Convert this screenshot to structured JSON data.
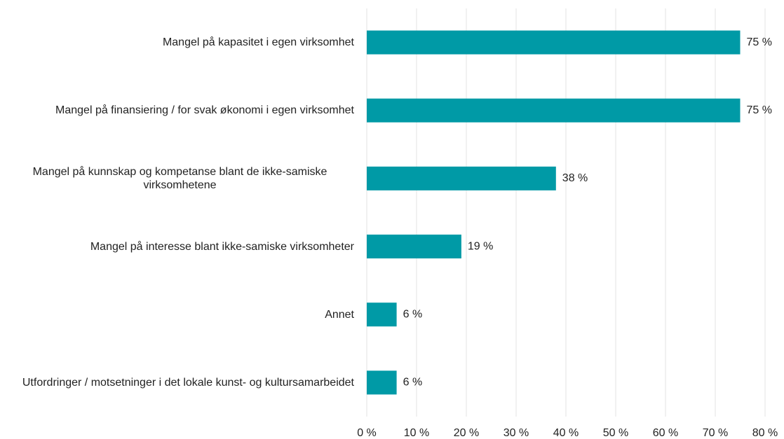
{
  "chart_data": {
    "type": "bar",
    "orientation": "horizontal",
    "categories": [
      "Mangel på kapasitet i egen virksomhet",
      "Mangel på finansiering / for svak økonomi i egen virksomhet",
      "Mangel på kunnskap og kompetanse blant de ikke-samiske virksomhetene",
      "Mangel på interesse blant ikke-samiske virksomheter",
      "Annet",
      "Utfordringer / motsetninger i det lokale kunst- og kultursamarbeidet"
    ],
    "values": [
      75,
      75,
      38,
      19,
      6,
      6
    ],
    "value_labels": [
      "75 %",
      "75 %",
      "38 %",
      "19 %",
      "6 %",
      "6 %"
    ],
    "color": "#009aa6",
    "xlim": [
      0,
      80
    ],
    "xticks": [
      {
        "value": 0,
        "label": "0 %"
      },
      {
        "value": 10,
        "label": "10 %"
      },
      {
        "value": 20,
        "label": "20 %"
      },
      {
        "value": 30,
        "label": "30 %"
      },
      {
        "value": 40,
        "label": "40 %"
      },
      {
        "value": 50,
        "label": "50 %"
      },
      {
        "value": 60,
        "label": "60 %"
      },
      {
        "value": 70,
        "label": "70 %"
      },
      {
        "value": 80,
        "label": "80 %"
      }
    ],
    "grid": true
  }
}
